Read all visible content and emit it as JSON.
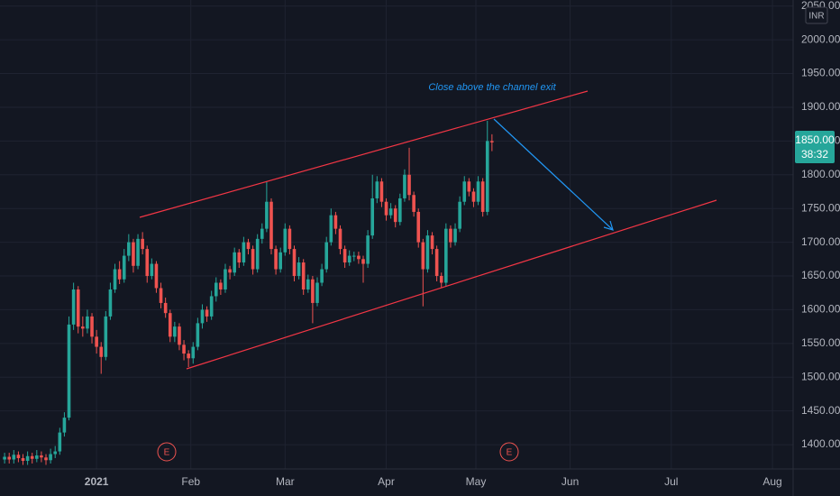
{
  "chart_data": {
    "type": "candlestick",
    "currency": "INR",
    "annotation": "Close above the channel exit",
    "price_label": "1850.00",
    "countdown": "38:32",
    "events": [
      "E",
      "E"
    ],
    "up_color": "#26a69a",
    "down_color": "#ef5350",
    "grid": true,
    "ylim": [
      1364,
      2059
    ],
    "yticks": [
      {
        "value": 1400,
        "label": "1400.00"
      },
      {
        "value": 1450,
        "label": "1450.00"
      },
      {
        "value": 1500,
        "label": "1500.00"
      },
      {
        "value": 1550,
        "label": "1550.00"
      },
      {
        "value": 1600,
        "label": "1600.00"
      },
      {
        "value": 1650,
        "label": "1650.00"
      },
      {
        "value": 1700,
        "label": "1700.00"
      },
      {
        "value": 1750,
        "label": "1750.00"
      },
      {
        "value": 1800,
        "label": "1800.00"
      },
      {
        "value": 1850,
        "label": "1850.00"
      },
      {
        "value": 1900,
        "label": "1900.00"
      },
      {
        "value": 1950,
        "label": "1950.00"
      },
      {
        "value": 2000,
        "label": "2000.00"
      },
      {
        "value": 2050,
        "label": "2050.00"
      }
    ],
    "xlim": [
      -1,
      171.5
    ],
    "xticks": [
      {
        "value": 20,
        "label": "2021"
      },
      {
        "value": 40.5,
        "label": "Feb"
      },
      {
        "value": 61,
        "label": "Mar"
      },
      {
        "value": 83,
        "label": "Apr"
      },
      {
        "value": 102.5,
        "label": "May"
      },
      {
        "value": 123,
        "label": "Jun"
      },
      {
        "value": 145,
        "label": "Jul"
      },
      {
        "value": 167,
        "label": "Aug"
      }
    ],
    "candles": [
      [
        1378,
        1388,
        1372,
        1382
      ],
      [
        1382,
        1388,
        1372,
        1378
      ],
      [
        1378,
        1392,
        1372,
        1385
      ],
      [
        1385,
        1390,
        1374,
        1380
      ],
      [
        1380,
        1386,
        1370,
        1376
      ],
      [
        1376,
        1390,
        1370,
        1383
      ],
      [
        1383,
        1388,
        1372,
        1379
      ],
      [
        1379,
        1392,
        1374,
        1384
      ],
      [
        1384,
        1390,
        1374,
        1381
      ],
      [
        1381,
        1386,
        1370,
        1377
      ],
      [
        1377,
        1394,
        1372,
        1386
      ],
      [
        1386,
        1398,
        1380,
        1390
      ],
      [
        1390,
        1425,
        1385,
        1418
      ],
      [
        1418,
        1448,
        1412,
        1440
      ],
      [
        1440,
        1590,
        1436,
        1578
      ],
      [
        1578,
        1640,
        1570,
        1630
      ],
      [
        1630,
        1635,
        1565,
        1575
      ],
      [
        1575,
        1590,
        1560,
        1572
      ],
      [
        1572,
        1600,
        1565,
        1590
      ],
      [
        1590,
        1595,
        1550,
        1560
      ],
      [
        1560,
        1570,
        1535,
        1545
      ],
      [
        1545,
        1552,
        1505,
        1530
      ],
      [
        1530,
        1598,
        1525,
        1590
      ],
      [
        1590,
        1640,
        1585,
        1630
      ],
      [
        1630,
        1668,
        1625,
        1660
      ],
      [
        1660,
        1672,
        1638,
        1645
      ],
      [
        1645,
        1690,
        1640,
        1680
      ],
      [
        1680,
        1712,
        1672,
        1700
      ],
      [
        1700,
        1705,
        1655,
        1665
      ],
      [
        1665,
        1712,
        1660,
        1705
      ],
      [
        1705,
        1715,
        1682,
        1690
      ],
      [
        1690,
        1695,
        1640,
        1650
      ],
      [
        1650,
        1676,
        1645,
        1668
      ],
      [
        1668,
        1672,
        1625,
        1632
      ],
      [
        1632,
        1640,
        1602,
        1610
      ],
      [
        1610,
        1618,
        1588,
        1595
      ],
      [
        1595,
        1600,
        1552,
        1560
      ],
      [
        1560,
        1582,
        1552,
        1575
      ],
      [
        1575,
        1580,
        1540,
        1548
      ],
      [
        1548,
        1555,
        1525,
        1535
      ],
      [
        1535,
        1540,
        1515,
        1528
      ],
      [
        1528,
        1552,
        1520,
        1545
      ],
      [
        1545,
        1588,
        1540,
        1580
      ],
      [
        1580,
        1608,
        1572,
        1600
      ],
      [
        1600,
        1605,
        1582,
        1590
      ],
      [
        1590,
        1628,
        1585,
        1620
      ],
      [
        1620,
        1648,
        1612,
        1640
      ],
      [
        1640,
        1645,
        1622,
        1630
      ],
      [
        1630,
        1668,
        1625,
        1660
      ],
      [
        1660,
        1665,
        1645,
        1655
      ],
      [
        1655,
        1692,
        1650,
        1685
      ],
      [
        1685,
        1690,
        1662,
        1670
      ],
      [
        1670,
        1708,
        1665,
        1700
      ],
      [
        1700,
        1705,
        1682,
        1690
      ],
      [
        1690,
        1695,
        1652,
        1660
      ],
      [
        1660,
        1712,
        1655,
        1705
      ],
      [
        1705,
        1728,
        1698,
        1720
      ],
      [
        1720,
        1790,
        1715,
        1760
      ],
      [
        1760,
        1765,
        1682,
        1690
      ],
      [
        1690,
        1695,
        1652,
        1660
      ],
      [
        1660,
        1692,
        1655,
        1685
      ],
      [
        1685,
        1728,
        1680,
        1720
      ],
      [
        1720,
        1725,
        1682,
        1690
      ],
      [
        1690,
        1695,
        1642,
        1650
      ],
      [
        1650,
        1678,
        1645,
        1670
      ],
      [
        1670,
        1675,
        1622,
        1630
      ],
      [
        1630,
        1652,
        1625,
        1645
      ],
      [
        1645,
        1650,
        1580,
        1610
      ],
      [
        1610,
        1648,
        1605,
        1640
      ],
      [
        1640,
        1668,
        1635,
        1660
      ],
      [
        1660,
        1708,
        1655,
        1700
      ],
      [
        1700,
        1750,
        1695,
        1740
      ],
      [
        1740,
        1745,
        1712,
        1720
      ],
      [
        1720,
        1725,
        1682,
        1690
      ],
      [
        1690,
        1695,
        1662,
        1670
      ],
      [
        1670,
        1688,
        1665,
        1680
      ],
      [
        1680,
        1686,
        1672,
        1680
      ],
      [
        1680,
        1686,
        1668,
        1675
      ],
      [
        1675,
        1680,
        1640,
        1668
      ],
      [
        1668,
        1718,
        1662,
        1710
      ],
      [
        1710,
        1800,
        1705,
        1765
      ],
      [
        1765,
        1798,
        1758,
        1790
      ],
      [
        1790,
        1795,
        1752,
        1760
      ],
      [
        1760,
        1765,
        1732,
        1740
      ],
      [
        1740,
        1758,
        1735,
        1750
      ],
      [
        1750,
        1755,
        1722,
        1730
      ],
      [
        1730,
        1772,
        1725,
        1765
      ],
      [
        1765,
        1808,
        1760,
        1800
      ],
      [
        1800,
        1840,
        1762,
        1770
      ],
      [
        1770,
        1775,
        1738,
        1745
      ],
      [
        1745,
        1750,
        1692,
        1700
      ],
      [
        1700,
        1705,
        1605,
        1660
      ],
      [
        1660,
        1718,
        1655,
        1710
      ],
      [
        1710,
        1715,
        1682,
        1690
      ],
      [
        1690,
        1695,
        1642,
        1650
      ],
      [
        1650,
        1655,
        1632,
        1640
      ],
      [
        1640,
        1728,
        1635,
        1720
      ],
      [
        1720,
        1725,
        1692,
        1700
      ],
      [
        1700,
        1728,
        1695,
        1720
      ],
      [
        1720,
        1768,
        1715,
        1760
      ],
      [
        1760,
        1798,
        1755,
        1790
      ],
      [
        1790,
        1795,
        1768,
        1775
      ],
      [
        1775,
        1780,
        1752,
        1760
      ],
      [
        1760,
        1798,
        1755,
        1790
      ],
      [
        1790,
        1795,
        1738,
        1745
      ],
      [
        1745,
        1880,
        1740,
        1850
      ],
      [
        1850,
        1860,
        1835,
        1848
      ]
    ]
  }
}
